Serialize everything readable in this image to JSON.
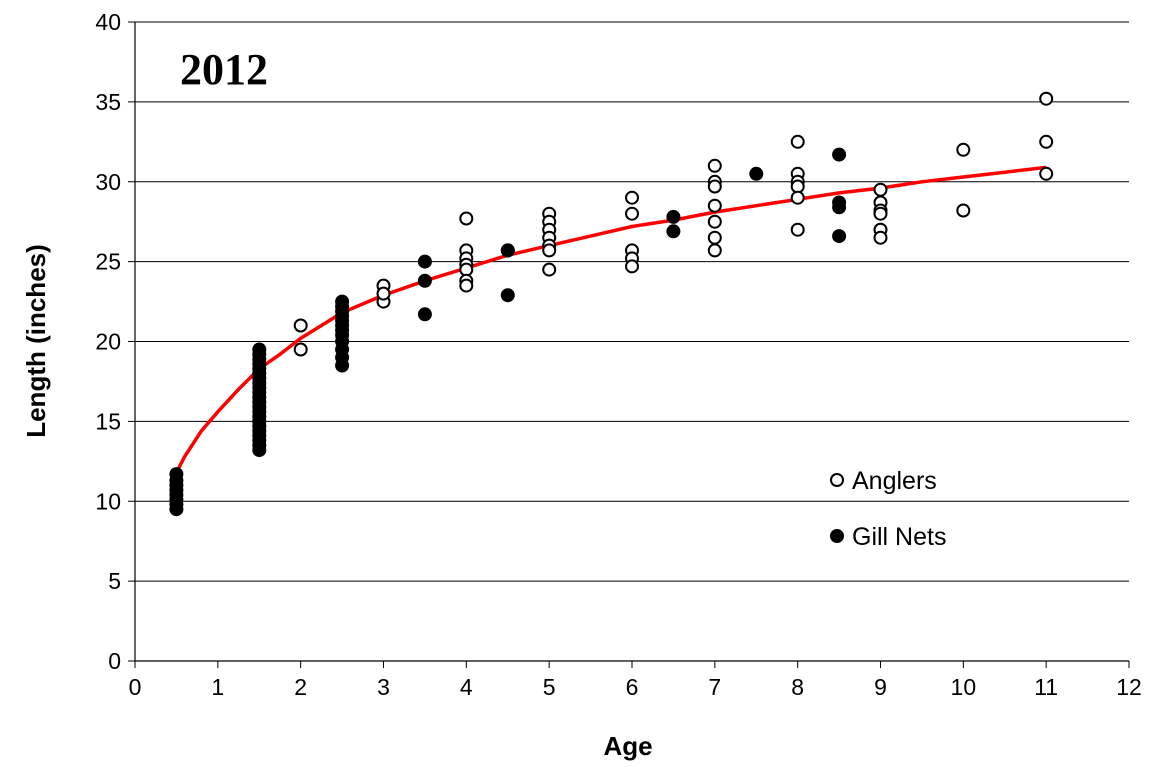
{
  "chart_data": {
    "type": "scatter",
    "title": "2012",
    "xlabel": "Age",
    "ylabel": "Length (inches)",
    "xlim": [
      0,
      12
    ],
    "ylim": [
      0,
      40
    ],
    "x_ticks": [
      0,
      1,
      2,
      3,
      4,
      5,
      6,
      7,
      8,
      9,
      10,
      11,
      12
    ],
    "y_ticks": [
      0,
      5,
      10,
      15,
      20,
      25,
      30,
      35,
      40
    ],
    "grid": "horizontal",
    "legend_position": "right",
    "series": [
      {
        "name": "Anglers",
        "marker": "open-circle",
        "color": "#000000",
        "points": [
          [
            2,
            21.0
          ],
          [
            2,
            19.5
          ],
          [
            3,
            23.5
          ],
          [
            3,
            22.5
          ],
          [
            3,
            23.0
          ],
          [
            4,
            27.7
          ],
          [
            4,
            25.7
          ],
          [
            4,
            25.2
          ],
          [
            4,
            24.8
          ],
          [
            4,
            24.5
          ],
          [
            4,
            23.8
          ],
          [
            4,
            23.5
          ],
          [
            4.5,
            25.7
          ],
          [
            5,
            28.0
          ],
          [
            5,
            27.5
          ],
          [
            5,
            27.0
          ],
          [
            5,
            26.5
          ],
          [
            5,
            26.0
          ],
          [
            5,
            25.7
          ],
          [
            5,
            24.5
          ],
          [
            6,
            29.0
          ],
          [
            6,
            28.0
          ],
          [
            6,
            25.7
          ],
          [
            6,
            25.2
          ],
          [
            6,
            24.7
          ],
          [
            7,
            31.0
          ],
          [
            7,
            30.0
          ],
          [
            7,
            29.7
          ],
          [
            7,
            28.5
          ],
          [
            7,
            27.5
          ],
          [
            7,
            26.5
          ],
          [
            7,
            25.7
          ],
          [
            8,
            32.5
          ],
          [
            8,
            30.5
          ],
          [
            8,
            30.0
          ],
          [
            8,
            29.7
          ],
          [
            8,
            29.0
          ],
          [
            8,
            27.0
          ],
          [
            9,
            29.5
          ],
          [
            9,
            28.7
          ],
          [
            9,
            28.2
          ],
          [
            9,
            28.0
          ],
          [
            9,
            27.0
          ],
          [
            9,
            26.5
          ],
          [
            10,
            32.0
          ],
          [
            10,
            28.2
          ],
          [
            11,
            35.2
          ],
          [
            11,
            32.5
          ],
          [
            11,
            30.5
          ]
        ]
      },
      {
        "name": "Gill Nets",
        "marker": "filled-circle",
        "color": "#000000",
        "points": [
          [
            0.5,
            11.7
          ],
          [
            0.5,
            11.3
          ],
          [
            0.5,
            11.0
          ],
          [
            0.5,
            10.7
          ],
          [
            0.5,
            10.4
          ],
          [
            0.5,
            10.1
          ],
          [
            0.5,
            9.8
          ],
          [
            0.5,
            9.5
          ],
          [
            1.5,
            19.5
          ],
          [
            1.5,
            19.2
          ],
          [
            1.5,
            18.9
          ],
          [
            1.5,
            18.6
          ],
          [
            1.5,
            18.3
          ],
          [
            1.5,
            18.0
          ],
          [
            1.5,
            17.7
          ],
          [
            1.5,
            17.4
          ],
          [
            1.5,
            17.1
          ],
          [
            1.5,
            16.8
          ],
          [
            1.5,
            16.5
          ],
          [
            1.5,
            16.2
          ],
          [
            1.5,
            15.9
          ],
          [
            1.5,
            15.6
          ],
          [
            1.5,
            15.3
          ],
          [
            1.5,
            15.0
          ],
          [
            1.5,
            14.7
          ],
          [
            1.5,
            14.4
          ],
          [
            1.5,
            14.1
          ],
          [
            1.5,
            13.8
          ],
          [
            1.5,
            13.5
          ],
          [
            1.5,
            13.2
          ],
          [
            2.5,
            22.5
          ],
          [
            2.5,
            22.2
          ],
          [
            2.5,
            21.9
          ],
          [
            2.5,
            21.6
          ],
          [
            2.5,
            21.3
          ],
          [
            2.5,
            21.0
          ],
          [
            2.5,
            20.7
          ],
          [
            2.5,
            20.4
          ],
          [
            2.5,
            20.0
          ],
          [
            2.5,
            19.5
          ],
          [
            2.5,
            19.0
          ],
          [
            2.5,
            18.5
          ],
          [
            3.5,
            25.0
          ],
          [
            3.5,
            23.8
          ],
          [
            3.5,
            21.7
          ],
          [
            4.5,
            25.7
          ],
          [
            4.5,
            22.9
          ],
          [
            6.5,
            27.8
          ],
          [
            6.5,
            26.9
          ],
          [
            7.5,
            30.5
          ],
          [
            8.5,
            31.7
          ],
          [
            8.5,
            28.7
          ],
          [
            8.5,
            28.4
          ],
          [
            8.5,
            26.6
          ]
        ]
      }
    ],
    "trend_line": {
      "color": "#ff0000",
      "points": [
        [
          0.5,
          11.8
        ],
        [
          0.6,
          12.8
        ],
        [
          0.8,
          14.4
        ],
        [
          1.0,
          15.6
        ],
        [
          1.25,
          17.0
        ],
        [
          1.5,
          18.3
        ],
        [
          1.75,
          19.2
        ],
        [
          2.0,
          20.2
        ],
        [
          2.5,
          21.8
        ],
        [
          3.0,
          22.9
        ],
        [
          3.5,
          23.8
        ],
        [
          4.0,
          24.6
        ],
        [
          4.5,
          25.4
        ],
        [
          5.0,
          26.0
        ],
        [
          5.5,
          26.6
        ],
        [
          6.0,
          27.2
        ],
        [
          6.5,
          27.6
        ],
        [
          7.0,
          28.1
        ],
        [
          7.5,
          28.5
        ],
        [
          8.0,
          28.9
        ],
        [
          8.5,
          29.3
        ],
        [
          9.0,
          29.6
        ],
        [
          9.5,
          30.0
        ],
        [
          10.0,
          30.3
        ],
        [
          10.5,
          30.6
        ],
        [
          11.0,
          30.9
        ]
      ]
    }
  }
}
